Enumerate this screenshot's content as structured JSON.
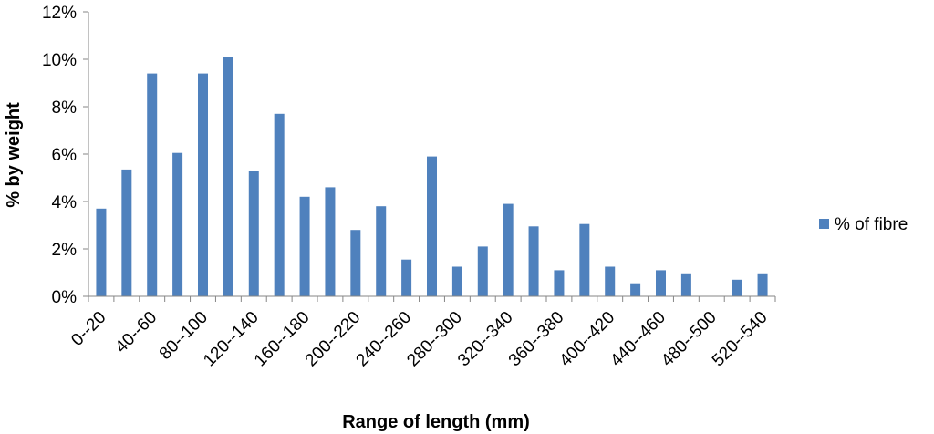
{
  "chart_data": {
    "type": "bar",
    "title": "",
    "xlabel": "Range of length (mm)",
    "ylabel": "%  by weight",
    "ylim": [
      0,
      12
    ],
    "yticks": [
      "0%",
      "2%",
      "4%",
      "6%",
      "8%",
      "10%",
      "12%"
    ],
    "ytick_values": [
      0,
      2,
      4,
      6,
      8,
      10,
      12
    ],
    "grid": false,
    "legend_position": "right",
    "bar_color": "#4f81bd",
    "categories": [
      "0--20",
      "20--40",
      "40--60",
      "60--80",
      "80--100",
      "100--120",
      "120--140",
      "140--160",
      "160--180",
      "180--200",
      "200--220",
      "220--240",
      "240--260",
      "260--280",
      "280--300",
      "300--320",
      "320--340",
      "340--360",
      "360--380",
      "380--400",
      "400--420",
      "420--440",
      "440--460",
      "460--480",
      "480--500",
      "500--520",
      "520--540"
    ],
    "visible_category_labels": [
      "0--20",
      "40--60",
      "80--100",
      "120--140",
      "160--180",
      "200--220",
      "240--260",
      "280--300",
      "320--340",
      "360--380",
      "400--420",
      "440--460",
      "480--500",
      "520--540"
    ],
    "series": [
      {
        "name": "% of fibre",
        "values": [
          3.7,
          5.35,
          9.4,
          6.05,
          9.4,
          10.1,
          5.3,
          7.7,
          4.2,
          4.6,
          2.8,
          3.8,
          1.55,
          5.9,
          1.25,
          2.1,
          3.9,
          2.95,
          1.1,
          3.05,
          1.25,
          0.55,
          1.1,
          0.97,
          0,
          0.7,
          0.97
        ]
      }
    ]
  }
}
